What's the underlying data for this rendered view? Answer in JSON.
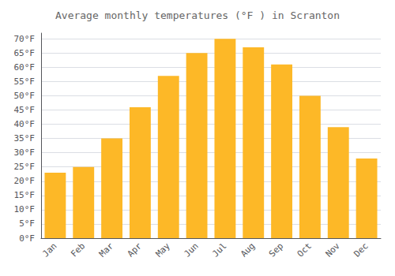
{
  "chart_data": {
    "type": "bar",
    "title": "Average monthly temperatures (°F ) in Scranton",
    "categories": [
      "Jan",
      "Feb",
      "Mar",
      "Apr",
      "May",
      "Jun",
      "Jul",
      "Aug",
      "Sep",
      "Oct",
      "Nov",
      "Dec"
    ],
    "values": [
      23,
      25,
      35,
      46,
      57,
      65,
      70,
      67,
      61,
      50,
      39,
      28
    ],
    "color": "#FDB827",
    "ylim": [
      0,
      72
    ],
    "yticks": [
      {
        "value": 0,
        "label": "0°F"
      },
      {
        "value": 5,
        "label": "5°F"
      },
      {
        "value": 10,
        "label": "10°F"
      },
      {
        "value": 15,
        "label": "15°F"
      },
      {
        "value": 20,
        "label": "20°F"
      },
      {
        "value": 25,
        "label": "25°F"
      },
      {
        "value": 30,
        "label": "30°F"
      },
      {
        "value": 35,
        "label": "35°F"
      },
      {
        "value": 40,
        "label": "40°F"
      },
      {
        "value": 45,
        "label": "45°F"
      },
      {
        "value": 50,
        "label": "50°F"
      },
      {
        "value": 55,
        "label": "55°F"
      },
      {
        "value": 60,
        "label": "60°F"
      },
      {
        "value": 65,
        "label": "65°F"
      },
      {
        "value": 70,
        "label": "70°F"
      }
    ],
    "grid": true
  }
}
